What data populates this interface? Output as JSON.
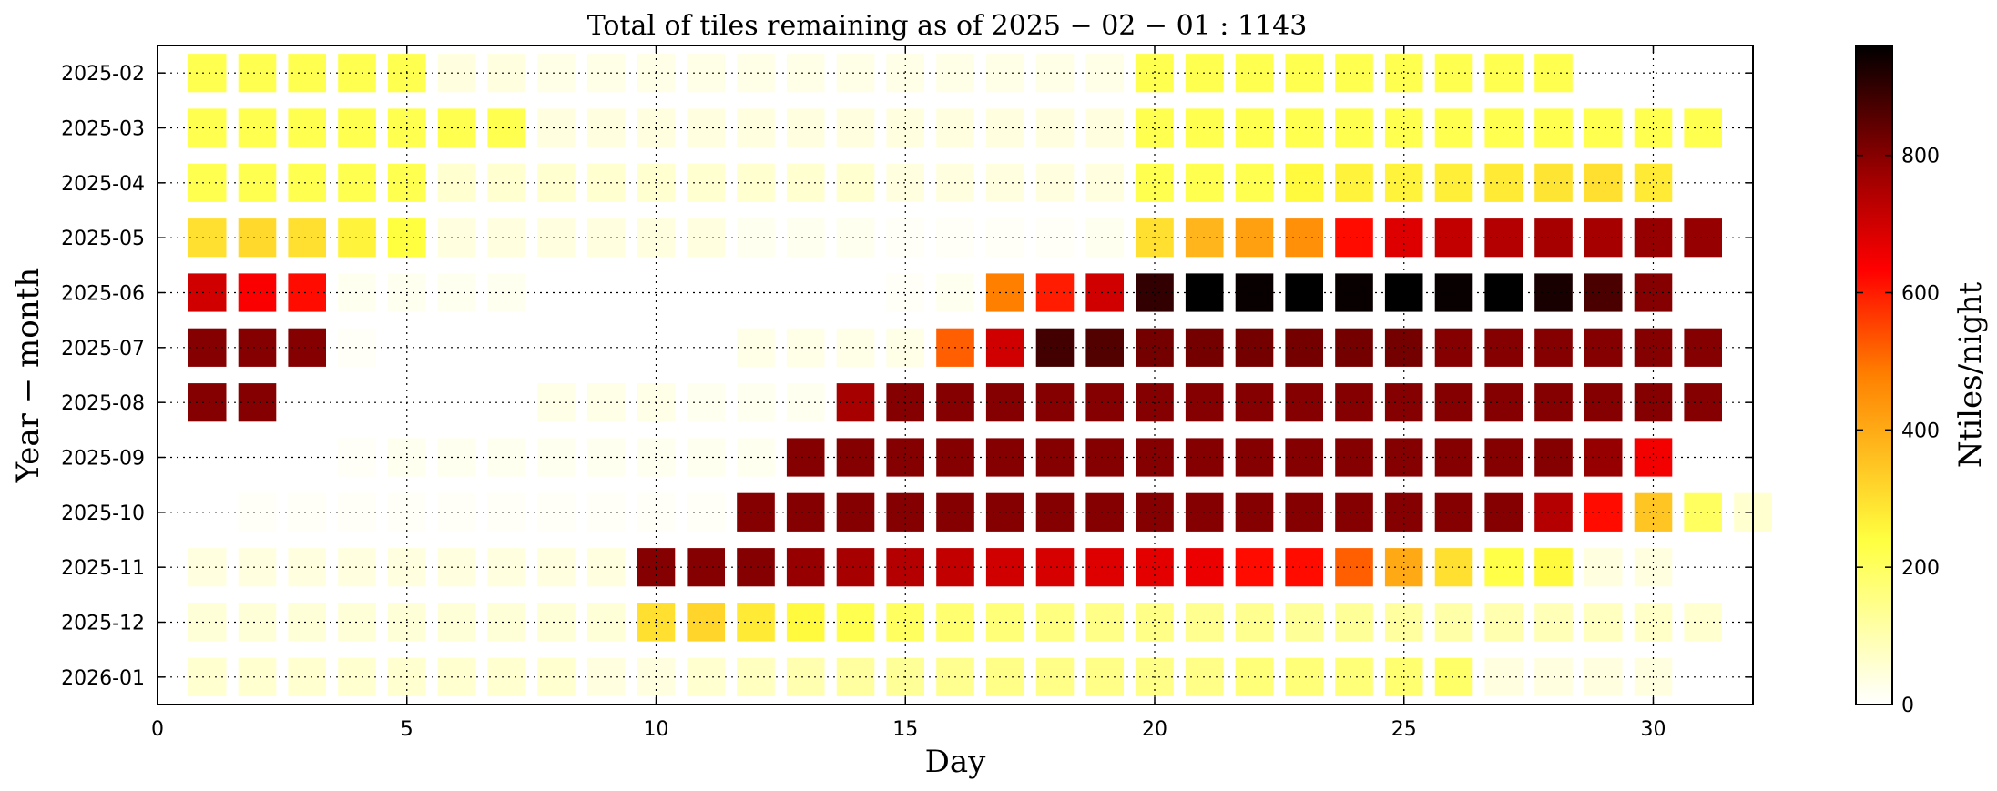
{
  "chart_data": {
    "type": "heatmap",
    "title": "Total of tiles remaining as of 2025 − 02 − 01 :  1143",
    "xlabel": "Day",
    "ylabel": "Year − month",
    "colorbar_label": "Ntiles/night",
    "colormap": "afmhot_r",
    "xlim": [
      0,
      32
    ],
    "x_ticks": [
      0,
      5,
      10,
      15,
      20,
      25,
      30
    ],
    "colorbar_range": [
      0,
      960
    ],
    "colorbar_ticks": [
      0,
      200,
      400,
      600,
      800
    ],
    "grid": true,
    "rows": [
      {
        "label": "2025-02",
        "values": [
          220,
          220,
          220,
          220,
          220,
          40,
          40,
          30,
          30,
          30,
          30,
          30,
          30,
          30,
          30,
          30,
          30,
          30,
          30,
          220,
          220,
          220,
          220,
          220,
          220,
          220,
          220,
          220
        ]
      },
      {
        "label": "2025-03",
        "values": [
          220,
          220,
          220,
          220,
          220,
          220,
          220,
          40,
          40,
          40,
          40,
          40,
          40,
          40,
          40,
          40,
          40,
          40,
          40,
          220,
          220,
          220,
          220,
          220,
          220,
          220,
          220,
          220,
          220,
          220,
          220
        ]
      },
      {
        "label": "2025-04",
        "values": [
          220,
          220,
          220,
          220,
          220,
          60,
          60,
          60,
          60,
          60,
          60,
          60,
          60,
          60,
          40,
          40,
          40,
          40,
          40,
          220,
          220,
          220,
          250,
          260,
          260,
          270,
          280,
          290,
          300,
          280
        ]
      },
      {
        "label": "2025-05",
        "values": [
          300,
          310,
          300,
          260,
          240,
          40,
          40,
          40,
          40,
          40,
          40,
          20,
          20,
          20,
          10,
          10,
          10,
          10,
          20,
          300,
          380,
          420,
          450,
          620,
          680,
          720,
          740,
          760,
          760,
          780,
          780
        ]
      },
      {
        "label": "2025-06",
        "values": [
          700,
          640,
          620,
          20,
          20,
          20,
          20,
          0,
          0,
          0,
          0,
          0,
          0,
          0,
          10,
          20,
          480,
          600,
          700,
          900,
          960,
          950,
          960,
          950,
          960,
          950,
          960,
          930,
          870,
          800
        ]
      },
      {
        "label": "2025-07",
        "values": [
          800,
          800,
          800,
          10,
          0,
          0,
          0,
          0,
          0,
          0,
          0,
          30,
          30,
          30,
          30,
          520,
          700,
          880,
          860,
          820,
          820,
          820,
          820,
          820,
          820,
          800,
          800,
          800,
          800,
          800,
          800
        ]
      },
      {
        "label": "2025-08",
        "values": [
          800,
          800,
          0,
          0,
          0,
          0,
          0,
          30,
          30,
          30,
          20,
          20,
          20,
          760,
          800,
          800,
          800,
          800,
          800,
          800,
          800,
          800,
          800,
          800,
          800,
          800,
          800,
          800,
          800,
          800,
          800
        ]
      },
      {
        "label": "2025-09",
        "values": [
          0,
          0,
          0,
          10,
          20,
          20,
          20,
          20,
          20,
          20,
          20,
          20,
          800,
          800,
          800,
          800,
          800,
          800,
          800,
          800,
          800,
          800,
          800,
          800,
          800,
          800,
          800,
          800,
          780,
          650
        ]
      },
      {
        "label": "2025-10",
        "values": [
          0,
          10,
          10,
          10,
          10,
          10,
          10,
          10,
          10,
          10,
          10,
          800,
          800,
          800,
          800,
          800,
          800,
          800,
          800,
          800,
          800,
          800,
          800,
          800,
          800,
          800,
          800,
          740,
          620,
          350,
          200,
          60
        ]
      },
      {
        "label": "2025-11",
        "values": [
          40,
          40,
          40,
          40,
          40,
          40,
          40,
          40,
          40,
          800,
          800,
          800,
          780,
          760,
          740,
          720,
          700,
          690,
          680,
          670,
          660,
          620,
          620,
          520,
          400,
          300,
          230,
          250,
          40,
          40
        ]
      },
      {
        "label": "2025-12",
        "values": [
          50,
          50,
          50,
          50,
          50,
          50,
          50,
          50,
          50,
          300,
          320,
          280,
          250,
          220,
          200,
          180,
          170,
          160,
          150,
          150,
          140,
          140,
          130,
          130,
          120,
          110,
          100,
          90,
          80,
          70,
          60
        ]
      },
      {
        "label": "2026-01",
        "values": [
          60,
          60,
          60,
          60,
          60,
          60,
          60,
          60,
          40,
          40,
          60,
          80,
          100,
          120,
          130,
          140,
          150,
          150,
          150,
          150,
          150,
          170,
          170,
          170,
          180,
          190,
          40,
          40,
          40,
          40
        ]
      }
    ]
  }
}
